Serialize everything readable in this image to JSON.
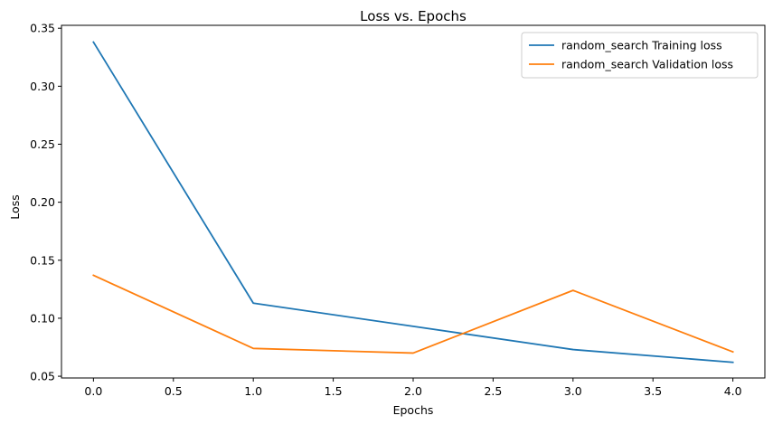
{
  "chart_data": {
    "type": "line",
    "title": "Loss vs. Epochs",
    "xlabel": "Epochs",
    "ylabel": "Loss",
    "xlim": [
      -0.2,
      4.2
    ],
    "ylim": [
      0.0485,
      0.3525
    ],
    "x": [
      0.0,
      1.0,
      2.0,
      3.0,
      4.0
    ],
    "xticks": [
      0.0,
      0.5,
      1.0,
      1.5,
      2.0,
      2.5,
      3.0,
      3.5,
      4.0
    ],
    "xtick_labels": [
      "0.0",
      "0.5",
      "1.0",
      "1.5",
      "2.0",
      "2.5",
      "3.0",
      "3.5",
      "4.0"
    ],
    "yticks": [
      0.05,
      0.1,
      0.15,
      0.2,
      0.25,
      0.3,
      0.35
    ],
    "ytick_labels": [
      "0.05",
      "0.10",
      "0.15",
      "0.20",
      "0.25",
      "0.30",
      "0.35"
    ],
    "grid": false,
    "legend_position": "top-right",
    "series": [
      {
        "name": "random_search Training loss",
        "color": "#1f77b4",
        "values": [
          0.338,
          0.113,
          0.093,
          0.073,
          0.062
        ]
      },
      {
        "name": "random_search Validation loss",
        "color": "#ff7f0e",
        "values": [
          0.137,
          0.074,
          0.07,
          0.124,
          0.071
        ]
      }
    ]
  }
}
